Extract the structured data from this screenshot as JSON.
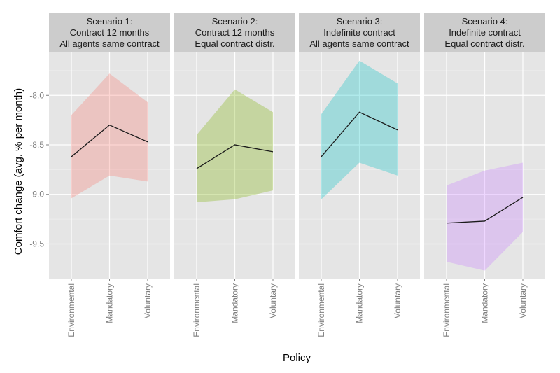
{
  "chart_data": {
    "type": "area",
    "xlabel": "Policy",
    "ylabel": "Comfort change (avg. % per month)",
    "categories": [
      "Environmental",
      "Mandatory",
      "Voluntary"
    ],
    "ylim": [
      -9.85,
      -7.56
    ],
    "yticks": [
      -8.0,
      -8.5,
      -9.0,
      -9.5
    ],
    "ytick_labels": [
      "-8.0",
      "-8.5",
      "-9.0",
      "-9.5"
    ],
    "grid": true,
    "legend": "none",
    "panels": [
      {
        "strip": [
          "Scenario 1:",
          "Contract 12 months",
          "All agents same contract"
        ],
        "color": "#F8766D",
        "mean": [
          -8.62,
          -8.3,
          -8.47
        ],
        "lower": [
          -9.04,
          -8.81,
          -8.87
        ],
        "upper": [
          -8.2,
          -7.78,
          -8.07
        ]
      },
      {
        "strip": [
          "Scenario 2:",
          "Contract 12 months",
          "Equal contract distr."
        ],
        "color": "#7CAE00",
        "mean": [
          -8.74,
          -8.5,
          -8.57
        ],
        "lower": [
          -9.08,
          -9.05,
          -8.96
        ],
        "upper": [
          -8.4,
          -7.94,
          -8.17
        ]
      },
      {
        "strip": [
          "Scenario 3:",
          "Indefinite contract",
          "All agents same contract"
        ],
        "color": "#00BFC4",
        "mean": [
          -8.62,
          -8.17,
          -8.35
        ],
        "lower": [
          -9.05,
          -8.68,
          -8.81
        ],
        "upper": [
          -8.19,
          -7.65,
          -7.88
        ]
      },
      {
        "strip": [
          "Scenario 4:",
          "Indefinite contract",
          "Equal contract distr."
        ],
        "color": "#C77CFF",
        "mean": [
          -9.29,
          -9.27,
          -9.03
        ],
        "lower": [
          -9.68,
          -9.77,
          -9.38
        ],
        "upper": [
          -8.91,
          -8.76,
          -8.68
        ]
      }
    ]
  }
}
